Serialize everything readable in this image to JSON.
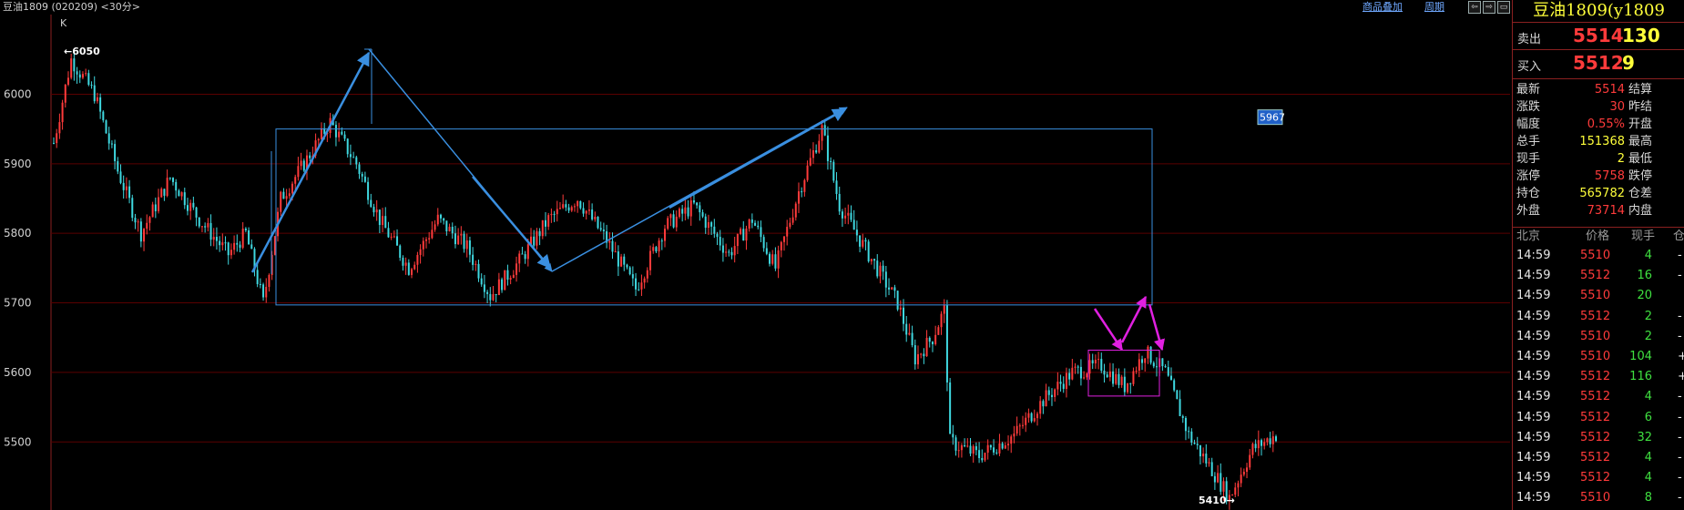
{
  "header": {
    "title": "豆油1809 (020209) <30分>",
    "chart_label": "K",
    "link_overlay": "商品叠加",
    "link_period": "周期"
  },
  "chart_data": {
    "type": "candlestick",
    "ylim": [
      5410,
      6070
    ],
    "yticks": [
      5500,
      5600,
      5700,
      5800,
      5900,
      6000
    ],
    "grid": true,
    "high_label": "6050",
    "low_label": "5410",
    "price_tag": "5967",
    "rect_blue": {
      "top": 5950,
      "bottom": 5697
    },
    "rect_magenta": {
      "top": 5632,
      "bottom": 5566
    },
    "colors": {
      "up": "#ff3b3b",
      "down": "#3fd8e0",
      "grid": "#5a0000",
      "box": "#3a8fe0",
      "box2": "#e020e0"
    }
  },
  "panel": {
    "title": "豆油1809(y1809",
    "sell_label": "卖出",
    "sell_price": "5514",
    "sell_vol": "130",
    "buy_label": "买入",
    "buy_price": "5512",
    "buy_vol": "9",
    "quotes": [
      {
        "l": "最新",
        "v": "5514",
        "c": "#ff3b3b",
        "l2": "结算"
      },
      {
        "l": "涨跌",
        "v": "30",
        "c": "#ff3b3b",
        "l2": "昨结"
      },
      {
        "l": "幅度",
        "v": "0.55%",
        "c": "#ff3b3b",
        "l2": "开盘"
      },
      {
        "l": "总手",
        "v": "151368",
        "c": "#ffff3a",
        "l2": "最高"
      },
      {
        "l": "现手",
        "v": "2",
        "c": "#ffff3a",
        "l2": "最低"
      },
      {
        "l": "涨停",
        "v": "5758",
        "c": "#ff3b3b",
        "l2": "跌停"
      },
      {
        "l": "持仓",
        "v": "565782",
        "c": "#ffff3a",
        "l2": "仓差"
      },
      {
        "l": "外盘",
        "v": "73714",
        "c": "#ff3b3b",
        "l2": "内盘"
      }
    ],
    "ticks_header": {
      "time": "北京",
      "price": "价格",
      "qty": "现手",
      "chg": "仓"
    },
    "ticks": [
      {
        "t": "14:59",
        "p": "5510",
        "q": "4",
        "c": "-"
      },
      {
        "t": "14:59",
        "p": "5512",
        "q": "16",
        "c": "-"
      },
      {
        "t": "14:59",
        "p": "5510",
        "q": "20",
        "c": ""
      },
      {
        "t": "14:59",
        "p": "5512",
        "q": "2",
        "c": "-"
      },
      {
        "t": "14:59",
        "p": "5510",
        "q": "2",
        "c": "-"
      },
      {
        "t": "14:59",
        "p": "5510",
        "q": "104",
        "c": "+"
      },
      {
        "t": "14:59",
        "p": "5512",
        "q": "116",
        "c": "+"
      },
      {
        "t": "14:59",
        "p": "5512",
        "q": "4",
        "c": "-"
      },
      {
        "t": "14:59",
        "p": "5512",
        "q": "6",
        "c": "-"
      },
      {
        "t": "14:59",
        "p": "5512",
        "q": "32",
        "c": "-"
      },
      {
        "t": "14:59",
        "p": "5512",
        "q": "4",
        "c": "-"
      },
      {
        "t": "14:59",
        "p": "5512",
        "q": "4",
        "c": "-"
      },
      {
        "t": "14:59",
        "p": "5510",
        "q": "8",
        "c": "-"
      }
    ]
  }
}
